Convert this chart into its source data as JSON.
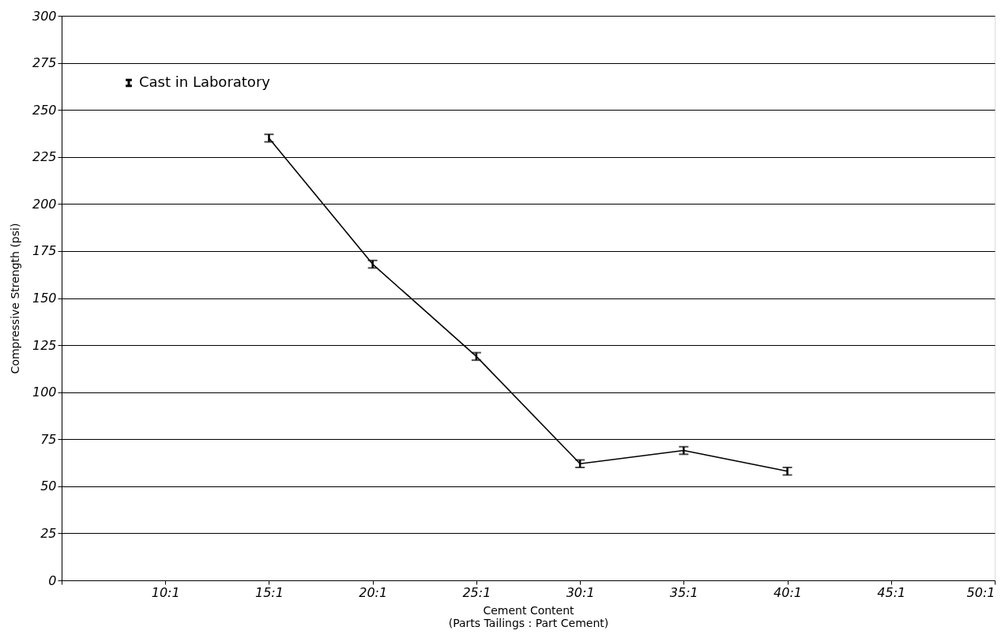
{
  "chart_data": {
    "type": "line",
    "xlabel": "Cement Content\n(Parts Tailings : Part Cement)",
    "ylabel": "Compressive Strength     (psi)",
    "categories": [
      null,
      "10:1",
      "15:1",
      "20:1",
      "25:1",
      "30:1",
      "35:1",
      "40:1",
      "45:1",
      "50:1"
    ],
    "series": [
      {
        "name": "Cast in Laboratory",
        "color": "#000000",
        "values": [
          null,
          null,
          235,
          168,
          119,
          62,
          69,
          58,
          null,
          null
        ],
        "errors": [
          null,
          null,
          2,
          2,
          2,
          2,
          2,
          2,
          null,
          null
        ]
      }
    ],
    "ylim": [
      0,
      300
    ],
    "yticks": [
      0,
      25,
      50,
      75,
      100,
      125,
      150,
      175,
      200,
      225,
      250,
      275,
      300
    ],
    "grid": "y",
    "legend": "top left",
    "marker": "none",
    "line_style": "solid"
  }
}
